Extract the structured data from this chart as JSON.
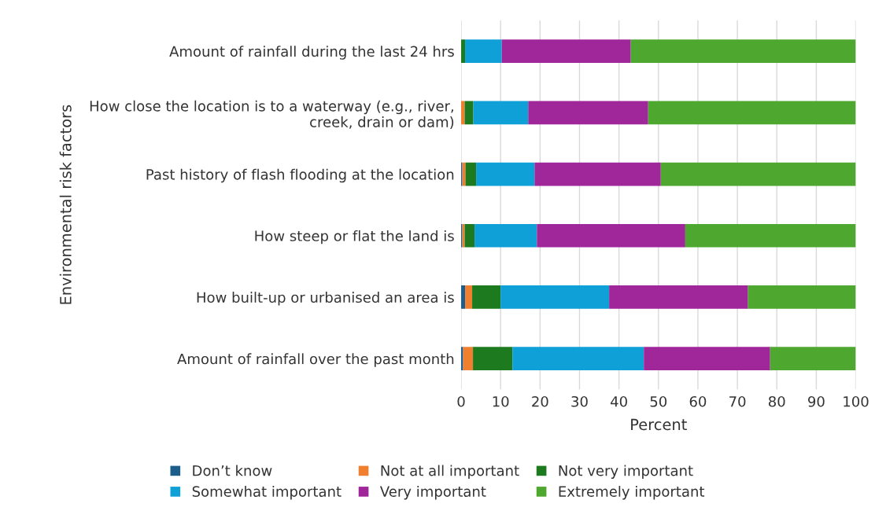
{
  "chart_data": {
    "type": "bar",
    "orientation": "horizontal",
    "stacked": true,
    "xlabel": "Percent",
    "ylabel": "Environmental risk factors",
    "categories": [
      "Amount of rainfall during the last 24 hrs",
      "How close the location is to a waterway (e.g., river,\ncreek, drain or dam)",
      "Past history of flash flooding at the location",
      "How steep or flat the land is",
      "How built-up or urbanised an area is",
      "Amount of rainfall over the past month"
    ],
    "series": [
      {
        "name": "Don’t know",
        "color": "#1b5e8c",
        "values": [
          0,
          0,
          0.3,
          0.3,
          1.0,
          0.5
        ]
      },
      {
        "name": "Not at all important",
        "color": "#f07f2f",
        "values": [
          0,
          0.9,
          0.8,
          0.6,
          1.8,
          2.5
        ]
      },
      {
        "name": "Not very important",
        "color": "#1e7a1e",
        "values": [
          1.0,
          2.2,
          2.7,
          2.5,
          7.2,
          10.0
        ]
      },
      {
        "name": "Somewhat important",
        "color": "#10a0d8",
        "values": [
          9.3,
          13.9,
          14.8,
          15.8,
          27.5,
          33.3
        ]
      },
      {
        "name": "Very important",
        "color": "#a0279a",
        "values": [
          32.7,
          30.4,
          32.0,
          37.6,
          35.2,
          32.0
        ]
      },
      {
        "name": "Extremely important",
        "color": "#4ea72e",
        "values": [
          57.0,
          52.6,
          49.4,
          43.2,
          27.3,
          21.7
        ]
      }
    ],
    "xlim": [
      0,
      100
    ],
    "xticks": [
      0,
      10,
      20,
      30,
      40,
      50,
      60,
      70,
      80,
      90,
      100
    ],
    "grid": "x",
    "legend": "bottom"
  }
}
